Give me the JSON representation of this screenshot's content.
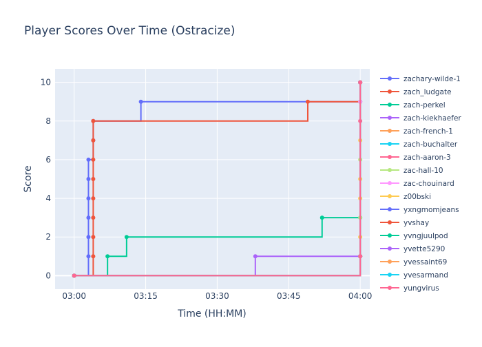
{
  "chart_data": {
    "type": "line",
    "line_shape": "step-after",
    "title": "Player Scores Over Time (Ostracize)",
    "xlabel": "Time (HH:MM)",
    "ylabel": "Score",
    "x_range": [
      "02:56",
      "04:02"
    ],
    "y_range": [
      -0.7,
      10.7
    ],
    "x_ticks": [
      "03:00",
      "03:15",
      "03:30",
      "03:45",
      "04:00"
    ],
    "y_ticks": [
      0,
      2,
      4,
      6,
      8,
      10
    ],
    "grid": true,
    "legend_position": "right",
    "colors": {
      "plot_bg": "#e5ecf6",
      "grid": "#ffffff",
      "text": "#2a3f5f",
      "title": "#2a3f5f"
    },
    "series": [
      {
        "name": "zachary-wilde-1",
        "color": "#636efa",
        "points": [
          [
            "03:00",
            0
          ],
          [
            "03:03",
            1
          ],
          [
            "03:03",
            2
          ],
          [
            "03:03",
            3
          ],
          [
            "03:03",
            4
          ],
          [
            "03:03",
            5
          ],
          [
            "03:03",
            6
          ],
          [
            "03:04",
            7
          ],
          [
            "03:04",
            8
          ],
          [
            "03:14",
            9
          ],
          [
            "04:00",
            9
          ],
          [
            "04:00",
            10
          ]
        ]
      },
      {
        "name": "zach_ludgate",
        "color": "#ef553b",
        "points": [
          [
            "03:00",
            0
          ],
          [
            "03:04",
            1
          ],
          [
            "03:04",
            2
          ],
          [
            "03:04",
            3
          ],
          [
            "03:04",
            4
          ],
          [
            "03:04",
            5
          ],
          [
            "03:04",
            6
          ],
          [
            "03:04",
            7
          ],
          [
            "03:04",
            8
          ],
          [
            "03:49",
            9
          ],
          [
            "04:00",
            9
          ],
          [
            "04:00",
            10
          ]
        ]
      },
      {
        "name": "zach-perkel",
        "color": "#00cc96",
        "points": [
          [
            "03:00",
            0
          ],
          [
            "03:07",
            1
          ],
          [
            "03:11",
            2
          ],
          [
            "03:52",
            3
          ],
          [
            "04:00",
            3
          ],
          [
            "04:00",
            10
          ]
        ]
      },
      {
        "name": "zach-kiekhaefer",
        "color": "#ab63fa",
        "points": [
          [
            "03:00",
            0
          ],
          [
            "03:38",
            1
          ],
          [
            "04:00",
            1
          ],
          [
            "04:00",
            10
          ]
        ]
      },
      {
        "name": "zach-french-1",
        "color": "#ffa15a",
        "points": [
          [
            "03:00",
            0
          ],
          [
            "04:00",
            1
          ],
          [
            "04:00",
            10
          ]
        ]
      },
      {
        "name": "zach-buchalter",
        "color": "#19d3f3",
        "points": [
          [
            "03:00",
            0
          ],
          [
            "04:00",
            1
          ],
          [
            "04:00",
            10
          ]
        ]
      },
      {
        "name": "zach-aaron-3",
        "color": "#ff6692",
        "points": [
          [
            "03:00",
            0
          ],
          [
            "04:00",
            1
          ],
          [
            "04:00",
            8
          ],
          [
            "04:00",
            10
          ]
        ]
      },
      {
        "name": "zac-hall-10",
        "color": "#b6e880",
        "points": [
          [
            "03:00",
            0
          ],
          [
            "04:00",
            1
          ],
          [
            "04:00",
            3
          ],
          [
            "04:00",
            6
          ],
          [
            "04:00",
            10
          ]
        ]
      },
      {
        "name": "zac-chouinard",
        "color": "#ff97ff",
        "points": [
          [
            "03:00",
            0
          ],
          [
            "04:00",
            1
          ],
          [
            "04:00",
            9
          ],
          [
            "04:00",
            10
          ]
        ]
      },
      {
        "name": "z00bski",
        "color": "#fecb52",
        "points": [
          [
            "03:00",
            0
          ],
          [
            "04:00",
            1
          ],
          [
            "04:00",
            2
          ],
          [
            "04:00",
            4
          ],
          [
            "04:00",
            5
          ],
          [
            "04:00",
            7
          ],
          [
            "04:00",
            10
          ]
        ]
      },
      {
        "name": "yxngmomjeans",
        "color": "#636efa",
        "points": [
          [
            "03:00",
            0
          ],
          [
            "04:00",
            1
          ],
          [
            "04:00",
            10
          ]
        ]
      },
      {
        "name": "yvshay",
        "color": "#ef553b",
        "points": [
          [
            "03:00",
            0
          ],
          [
            "04:00",
            1
          ],
          [
            "04:00",
            10
          ]
        ]
      },
      {
        "name": "yvngjuulpod",
        "color": "#00cc96",
        "points": [
          [
            "03:00",
            0
          ],
          [
            "04:00",
            1
          ],
          [
            "04:00",
            10
          ]
        ]
      },
      {
        "name": "yvette5290",
        "color": "#ab63fa",
        "points": [
          [
            "03:00",
            0
          ],
          [
            "04:00",
            1
          ],
          [
            "04:00",
            10
          ]
        ]
      },
      {
        "name": "yvessaint69",
        "color": "#ffa15a",
        "points": [
          [
            "03:00",
            0
          ],
          [
            "04:00",
            1
          ],
          [
            "04:00",
            10
          ]
        ]
      },
      {
        "name": "yvesarmand",
        "color": "#19d3f3",
        "points": [
          [
            "03:00",
            0
          ],
          [
            "04:00",
            1
          ],
          [
            "04:00",
            10
          ]
        ]
      },
      {
        "name": "yungvirus",
        "color": "#ff6692",
        "points": [
          [
            "03:00",
            0
          ],
          [
            "04:00",
            1
          ],
          [
            "04:00",
            10
          ]
        ]
      }
    ]
  }
}
